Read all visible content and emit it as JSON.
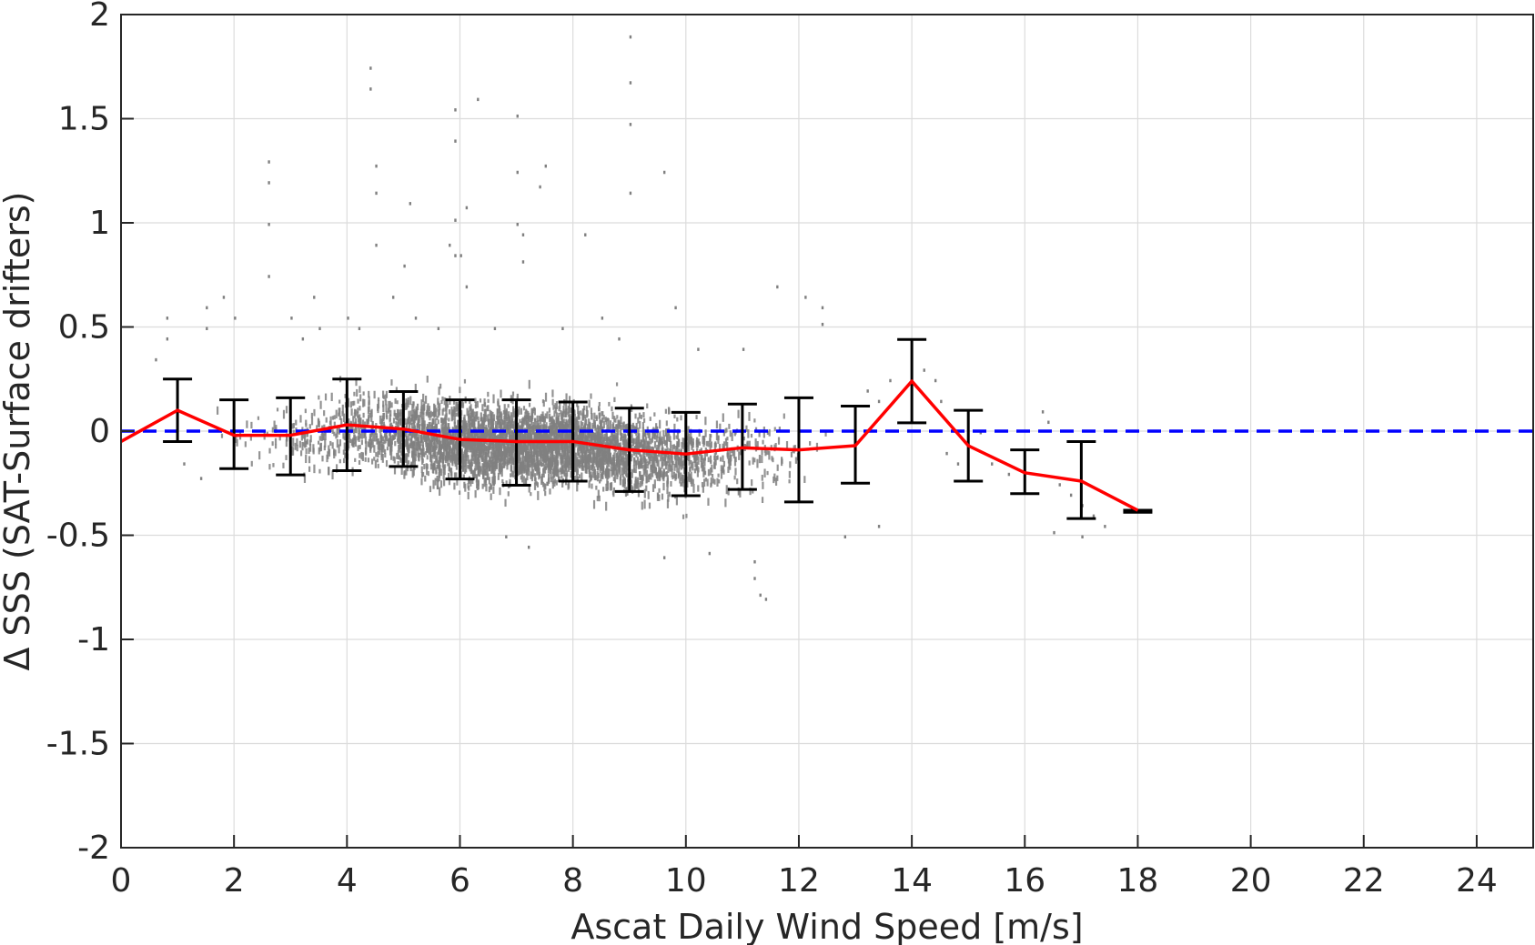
{
  "chart_data": {
    "type": "scatter",
    "xlabel": "Ascat Daily Wind Speed [m/s]",
    "ylabel": "Δ SSS (SAT-Surface drifters)",
    "xlim": [
      0,
      25
    ],
    "ylim": [
      -2,
      2
    ],
    "x_ticks": [
      0,
      2,
      4,
      6,
      8,
      10,
      12,
      14,
      16,
      18,
      20,
      22,
      24
    ],
    "y_ticks": [
      -2,
      -1.5,
      -1,
      -0.5,
      0,
      0.5,
      1,
      1.5,
      2
    ],
    "x_tick_labels": [
      "0",
      "2",
      "4",
      "6",
      "8",
      "10",
      "12",
      "14",
      "16",
      "18",
      "20",
      "22",
      "24"
    ],
    "y_tick_labels": [
      "-2",
      "-1.5",
      "-1",
      "-0.5",
      "0",
      "0.5",
      "1",
      "1.5",
      "2"
    ],
    "grid": true,
    "colors": {
      "scatter": "#808080",
      "mean_line": "#ff0000",
      "zero_line": "#0000ff",
      "error_bars": "#000000"
    },
    "scatter_points": [
      [
        2.6,
        1.3
      ],
      [
        2.6,
        1.2
      ],
      [
        2.6,
        1.0
      ],
      [
        2.6,
        0.75
      ],
      [
        3.4,
        0.65
      ],
      [
        4.4,
        1.75
      ],
      [
        4.4,
        1.65
      ],
      [
        4.5,
        1.28
      ],
      [
        4.5,
        1.15
      ],
      [
        4.5,
        0.9
      ],
      [
        5.1,
        1.1
      ],
      [
        5.0,
        0.8
      ],
      [
        4.8,
        0.65
      ],
      [
        5.8,
        0.9
      ],
      [
        5.9,
        1.02
      ],
      [
        5.9,
        0.85
      ],
      [
        5.9,
        1.55
      ],
      [
        5.9,
        1.4
      ],
      [
        6.0,
        0.85
      ],
      [
        6.3,
        1.6
      ],
      [
        6.1,
        1.08
      ],
      [
        6.1,
        0.7
      ],
      [
        7.0,
        1.25
      ],
      [
        7.0,
        1.0
      ],
      [
        7.1,
        0.95
      ],
      [
        7.1,
        0.82
      ],
      [
        7.0,
        1.52
      ],
      [
        7.4,
        1.18
      ],
      [
        7.5,
        1.28
      ],
      [
        8.2,
        0.95
      ],
      [
        8.5,
        0.55
      ],
      [
        9.0,
        1.9
      ],
      [
        9.0,
        1.68
      ],
      [
        9.0,
        1.48
      ],
      [
        9.0,
        1.15
      ],
      [
        9.6,
        1.25
      ],
      [
        9.8,
        0.6
      ],
      [
        11.6,
        0.7
      ],
      [
        12.1,
        0.65
      ],
      [
        12.4,
        0.6
      ],
      [
        12.4,
        0.52
      ],
      [
        3.0,
        0.55
      ],
      [
        3.2,
        0.45
      ],
      [
        3.5,
        0.5
      ],
      [
        4.0,
        0.55
      ],
      [
        4.2,
        0.5
      ],
      [
        5.2,
        0.55
      ],
      [
        5.6,
        0.5
      ],
      [
        6.6,
        0.5
      ],
      [
        7.8,
        0.5
      ],
      [
        8.8,
        0.45
      ],
      [
        10.2,
        0.4
      ],
      [
        11.0,
        0.4
      ],
      [
        1.5,
        0.6
      ],
      [
        1.5,
        0.5
      ],
      [
        1.8,
        0.65
      ],
      [
        2.0,
        0.55
      ],
      [
        0.8,
        0.55
      ],
      [
        0.8,
        0.45
      ],
      [
        0.6,
        0.35
      ],
      [
        13.2,
        0.2
      ],
      [
        13.4,
        0.15
      ],
      [
        13.6,
        0.25
      ],
      [
        14.2,
        0.3
      ],
      [
        14.4,
        0.25
      ],
      [
        14.5,
        0.15
      ],
      [
        14.6,
        -0.1
      ],
      [
        14.8,
        -0.15
      ],
      [
        15.2,
        0.0
      ],
      [
        15.4,
        -0.15
      ],
      [
        15.7,
        -0.2
      ],
      [
        16.3,
        0.1
      ],
      [
        16.4,
        0.05
      ],
      [
        16.6,
        -0.25
      ],
      [
        16.8,
        -0.3
      ],
      [
        17.0,
        -0.35
      ],
      [
        17.2,
        -0.4
      ],
      [
        17.4,
        -0.45
      ],
      [
        11.2,
        -0.62
      ],
      [
        11.2,
        -0.7
      ],
      [
        11.3,
        -0.78
      ],
      [
        11.4,
        -0.8
      ],
      [
        9.6,
        -0.6
      ],
      [
        10.4,
        -0.58
      ],
      [
        12.8,
        -0.5
      ],
      [
        7.2,
        -0.55
      ],
      [
        6.8,
        -0.5
      ],
      [
        1.4,
        -0.22
      ],
      [
        1.1,
        -0.15
      ],
      [
        17.0,
        -0.5
      ],
      [
        16.5,
        -0.48
      ],
      [
        13.4,
        -0.45
      ]
    ],
    "mean_series": {
      "x": [
        0,
        1,
        2,
        3,
        4,
        5,
        6,
        7,
        8,
        9,
        10,
        11,
        12,
        13,
        14,
        15,
        16,
        17,
        18
      ],
      "y": [
        -0.05,
        0.1,
        -0.02,
        -0.02,
        0.03,
        0.01,
        -0.04,
        -0.05,
        -0.05,
        -0.09,
        -0.11,
        -0.08,
        -0.09,
        -0.07,
        0.24,
        -0.07,
        -0.2,
        -0.24,
        -0.38
      ]
    },
    "error_bars": [
      {
        "x": 1,
        "low": -0.05,
        "high": 0.25
      },
      {
        "x": 2,
        "low": -0.18,
        "high": 0.15
      },
      {
        "x": 3,
        "low": -0.21,
        "high": 0.16
      },
      {
        "x": 4,
        "low": -0.19,
        "high": 0.25
      },
      {
        "x": 5,
        "low": -0.17,
        "high": 0.19
      },
      {
        "x": 6,
        "low": -0.23,
        "high": 0.15
      },
      {
        "x": 7,
        "low": -0.26,
        "high": 0.15
      },
      {
        "x": 8,
        "low": -0.24,
        "high": 0.14
      },
      {
        "x": 9,
        "low": -0.29,
        "high": 0.11
      },
      {
        "x": 10,
        "low": -0.31,
        "high": 0.09
      },
      {
        "x": 11,
        "low": -0.28,
        "high": 0.13
      },
      {
        "x": 12,
        "low": -0.34,
        "high": 0.16
      },
      {
        "x": 13,
        "low": -0.25,
        "high": 0.12
      },
      {
        "x": 14,
        "low": 0.04,
        "high": 0.44
      },
      {
        "x": 15,
        "low": -0.24,
        "high": 0.1
      },
      {
        "x": 16,
        "low": -0.3,
        "high": -0.09
      },
      {
        "x": 17,
        "low": -0.42,
        "high": -0.05
      },
      {
        "x": 18,
        "low": -0.39,
        "high": -0.38
      }
    ],
    "zero_line": {
      "y": 0
    }
  }
}
